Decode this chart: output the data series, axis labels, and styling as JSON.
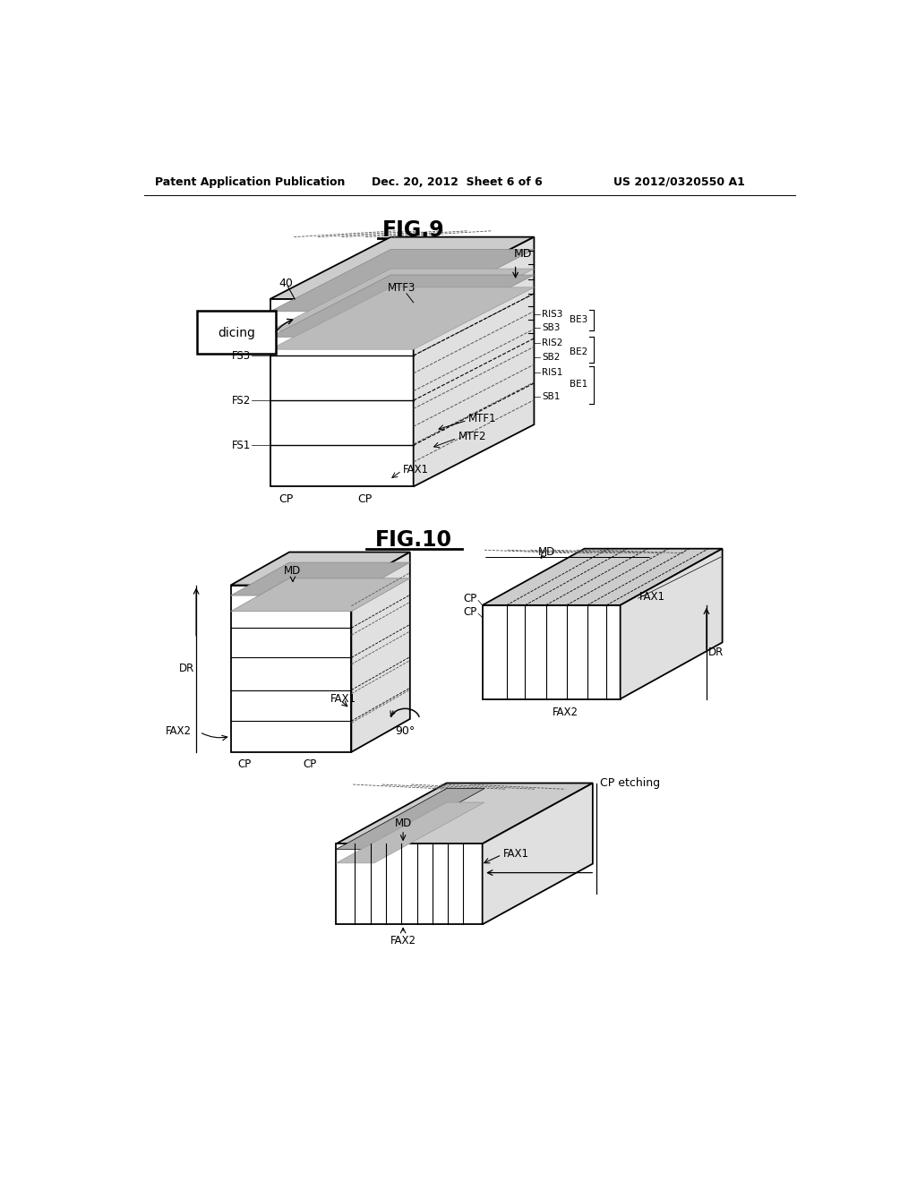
{
  "background_color": "#ffffff",
  "header_left": "Patent Application Publication",
  "header_center": "Dec. 20, 2012  Sheet 6 of 6",
  "header_right": "US 2012/0320550 A1",
  "fig9_title": "FIG.9",
  "fig10_title": "FIG.10"
}
